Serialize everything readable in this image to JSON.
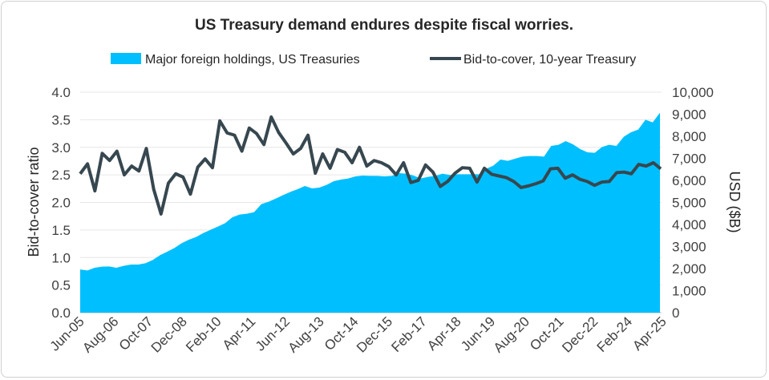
{
  "chart_data": {
    "type": "area+line",
    "title": "US Treasury demand endures despite fiscal worries.",
    "legend_position": "top",
    "grid": true,
    "x_tick_labels": [
      "Jun-05",
      "Aug-06",
      "Oct-07",
      "Dec-08",
      "Feb-10",
      "Apr-11",
      "Jun-12",
      "Aug-13",
      "Oct-14",
      "Dec-15",
      "Feb-17",
      "Apr-18",
      "Jun-19",
      "Aug-20",
      "Oct-21",
      "Dec-22",
      "Feb-24",
      "Apr-25"
    ],
    "y_left": {
      "label": "Bid-to-cover ratio",
      "range": [
        0,
        4.0
      ],
      "ticks": [
        "0.0",
        "0.5",
        "1.0",
        "1.5",
        "2.0",
        "2.5",
        "3.0",
        "3.5",
        "4.0"
      ]
    },
    "y_right": {
      "label": "USD ($B)",
      "range": [
        0,
        10000
      ],
      "ticks": [
        "0",
        "1,000",
        "2,000",
        "3,000",
        "4,000",
        "5,000",
        "6,000",
        "7,000",
        "8,000",
        "9,000",
        "10,000"
      ]
    },
    "series": [
      {
        "name": "Major foreign holdings, US Treasuries",
        "type": "area",
        "axis": "right",
        "color": "#00BFFF",
        "values": [
          1960,
          1915,
          2036,
          2085,
          2097,
          2036,
          2121,
          2182,
          2182,
          2242,
          2388,
          2606,
          2764,
          2933,
          3152,
          3309,
          3430,
          3612,
          3758,
          3903,
          4061,
          4327,
          4448,
          4485,
          4558,
          4921,
          5030,
          5176,
          5333,
          5479,
          5600,
          5745,
          5636,
          5673,
          5794,
          5964,
          6036,
          6085,
          6182,
          6218,
          6206,
          6206,
          6182,
          6206,
          6327,
          6303,
          6218,
          6085,
          6158,
          6206,
          6303,
          6242,
          6279,
          6279,
          6279,
          6279,
          6521,
          6667,
          6945,
          6885,
          6982,
          7079,
          7103,
          7103,
          7079,
          7564,
          7612,
          7782,
          7636,
          7418,
          7273,
          7248,
          7515,
          7612,
          7564,
          7976,
          8182,
          8303,
          8752,
          8630,
          9067
        ]
      },
      {
        "name": "Bid-to-cover, 10-year Treasury",
        "type": "line",
        "axis": "left",
        "color": "#37474F",
        "values": [
          2.52,
          2.7,
          2.21,
          2.89,
          2.76,
          2.93,
          2.5,
          2.66,
          2.57,
          2.98,
          2.24,
          1.79,
          2.35,
          2.52,
          2.46,
          2.15,
          2.64,
          2.79,
          2.63,
          3.48,
          3.26,
          3.22,
          2.93,
          3.35,
          3.25,
          3.05,
          3.55,
          3.27,
          3.08,
          2.88,
          2.98,
          3.22,
          2.53,
          2.88,
          2.62,
          2.96,
          2.91,
          2.72,
          3.0,
          2.66,
          2.76,
          2.72,
          2.65,
          2.5,
          2.72,
          2.36,
          2.4,
          2.68,
          2.55,
          2.29,
          2.38,
          2.53,
          2.63,
          2.62,
          2.37,
          2.62,
          2.51,
          2.48,
          2.45,
          2.38,
          2.27,
          2.3,
          2.34,
          2.39,
          2.61,
          2.62,
          2.44,
          2.5,
          2.42,
          2.38,
          2.31,
          2.37,
          2.38,
          2.54,
          2.55,
          2.52,
          2.69,
          2.66,
          2.72,
          2.61
        ]
      }
    ]
  }
}
